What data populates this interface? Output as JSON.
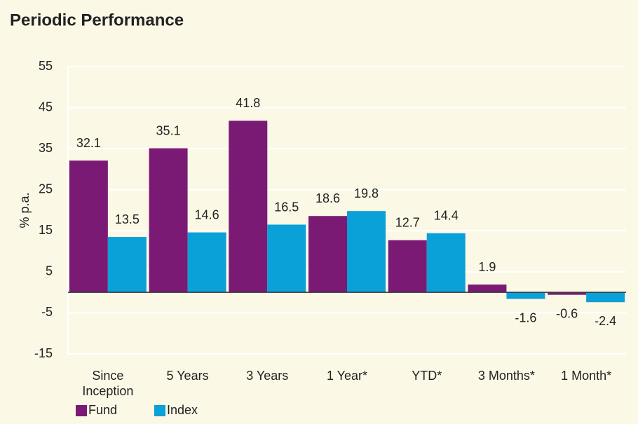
{
  "chart_data": {
    "type": "bar",
    "title": "Periodic Performance",
    "y_label": "% p.a.",
    "categories": [
      "Since Inception",
      "5 Years",
      "3 Years",
      "1 Year*",
      "YTD*",
      "3 Months*",
      "1 Month*"
    ],
    "series": [
      {
        "name": "Fund",
        "color": "#7b1a74",
        "values": [
          32.1,
          35.1,
          41.8,
          18.6,
          12.7,
          1.9,
          -0.6
        ]
      },
      {
        "name": "Index",
        "color": "#0aa0d8",
        "values": [
          13.5,
          14.6,
          16.5,
          19.8,
          14.4,
          -1.6,
          -2.4
        ]
      }
    ],
    "ylim": [
      -15,
      55
    ],
    "yticks": [
      -15,
      -5,
      5,
      15,
      25,
      35,
      45,
      55
    ],
    "grid": true,
    "legend": "bottom-left"
  }
}
